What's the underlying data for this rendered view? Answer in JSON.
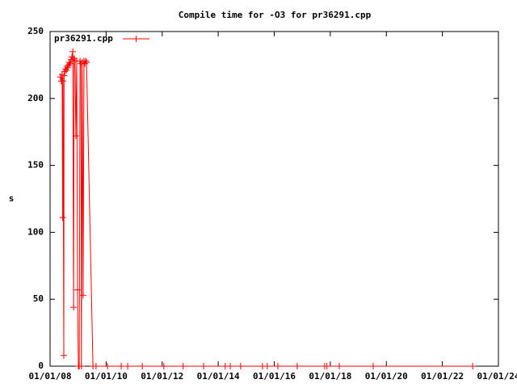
{
  "chart_data": {
    "type": "line",
    "title": "Compile time for -O3 for pr36291.cpp",
    "y_label": "s",
    "x": [
      2008.37,
      2008.4,
      2008.43,
      2008.45,
      2008.46,
      2008.49,
      2008.5,
      2008.52,
      2008.55,
      2008.58,
      2008.61,
      2008.63,
      2008.66,
      2008.69,
      2008.72,
      2008.75,
      2008.78,
      2008.81,
      2008.84,
      2008.86,
      2008.89,
      2008.92,
      2008.95,
      2008.98,
      2009.01,
      2009.04,
      2009.07,
      2009.1,
      2009.12,
      2009.15,
      2009.18,
      2009.21,
      2009.24,
      2009.27,
      2009.3,
      2009.53,
      2009.64,
      2010.05,
      2010.54,
      2010.77,
      2011.29,
      2012.06,
      2012.75,
      2013.48,
      2014.25,
      2014.43,
      2014.8,
      2015.58,
      2015.75,
      2016.13,
      2016.82,
      2017.8,
      2017.88,
      2018.32,
      2019.53,
      2023.08
    ],
    "series": [
      {
        "name": "pr36291.cpp",
        "color": "#ff0000",
        "values": [
          216,
          213,
          218,
          111,
          213,
          8,
          217,
          220,
          222,
          221,
          224,
          223,
          225,
          227,
          226,
          229,
          231,
          235,
          44,
          230,
          228,
          172,
          228,
          57,
          0,
          0,
          228,
          226,
          0,
          227,
          53,
          228,
          226,
          228,
          227,
          0,
          0,
          0,
          0,
          0,
          0,
          0,
          0,
          0,
          0,
          0,
          0,
          0,
          0,
          0,
          0,
          0,
          0,
          0,
          0,
          0
        ]
      }
    ],
    "xlim": [
      2008,
      2024
    ],
    "xticks": [
      {
        "value": 2008,
        "label": "01/01/08"
      },
      {
        "value": 2010,
        "label": "01/01/10"
      },
      {
        "value": 2012,
        "label": "01/01/12"
      },
      {
        "value": 2014,
        "label": "01/01/14"
      },
      {
        "value": 2016,
        "label": "01/01/16"
      },
      {
        "value": 2018,
        "label": "01/01/18"
      },
      {
        "value": 2020,
        "label": "01/01/20"
      },
      {
        "value": 2022,
        "label": "01/01/22"
      },
      {
        "value": 2024,
        "label": "01/01/24"
      }
    ],
    "ylim": [
      0,
      250
    ],
    "yticks": [
      0,
      50,
      100,
      150,
      200,
      250
    ],
    "legend": "top-left"
  }
}
